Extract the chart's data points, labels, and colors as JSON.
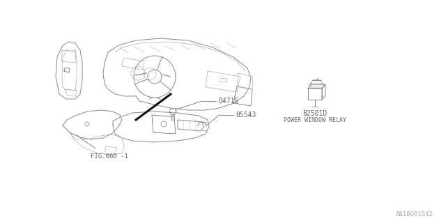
{
  "bg_color": "#ffffff",
  "line_color": "#aaaaaa",
  "dark_line": "#888888",
  "text_color": "#666666",
  "black_line": "#111111",
  "part_0471S": "0471S",
  "part_85543": "85543",
  "part_fig": "FIG.660 -1",
  "relay_num": "82501D",
  "relay_name": "POWER WINDOW RELAY",
  "watermark": "A816001042",
  "lw": 0.7,
  "lw_thick": 1.0
}
